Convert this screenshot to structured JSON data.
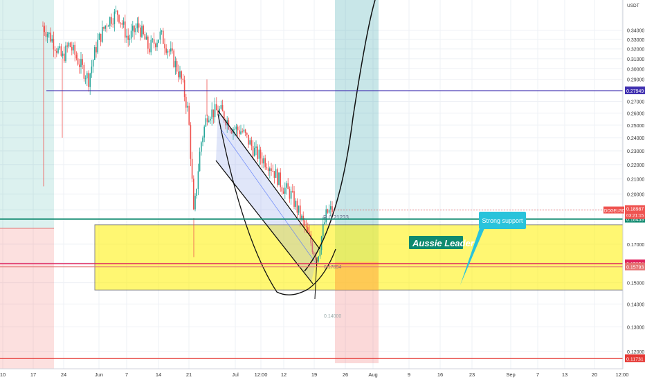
{
  "symbol": "DOGEUSDT",
  "currency": "USDT",
  "chart_data": {
    "type": "candlestick",
    "y_scale": "log",
    "ylim": [
      0.1135,
      0.375
    ],
    "x_tick_labels": [
      "10",
      "17",
      "24",
      "Jun",
      "7",
      "14",
      "21",
      "Jul",
      "12:00",
      "12",
      "19",
      "26",
      "Aug",
      "9",
      "16",
      "23",
      "Sep",
      "7",
      "13",
      "20",
      "12:00"
    ],
    "y_tick_labels": [
      "0.34000",
      "0.33000",
      "0.32000",
      "0.31000",
      "0.30000",
      "0.29000",
      "0.27000",
      "0.26000",
      "0.25000",
      "0.24000",
      "0.23000",
      "0.22000",
      "0.21000",
      "0.20000",
      "0.19000",
      "0.17000",
      "0.16000",
      "0.15000",
      "0.14000",
      "0.13000",
      "0.12000"
    ],
    "horizontal_levels": [
      {
        "value": 0.27949,
        "label": "0.27949",
        "color": "#3f2fb0"
      },
      {
        "value": 0.18439,
        "label": "0.18439",
        "color": "#0f8a6f"
      },
      {
        "value": 0.15954,
        "label": "0.15954",
        "color": "#e0245e"
      },
      {
        "value": 0.15793,
        "label": "0.15793",
        "color": "#e57373"
      },
      {
        "value": 0.11731,
        "label": "0.11731",
        "color": "#e53935"
      }
    ],
    "last_price": {
      "value": 0.18987,
      "label": "0.18987",
      "countdown": "03:21:15",
      "color": "#ef5350"
    },
    "zones": [
      {
        "name": "support-zone",
        "from": 0.1465,
        "to": 0.181,
        "color": "#fff200"
      }
    ],
    "candles_trend": [
      {
        "label": "Jun",
        "approx_close": 0.29
      },
      {
        "label": "21",
        "approx_close": 0.22
      },
      {
        "label": "Jul",
        "approx_close": 0.24
      },
      {
        "label": "19",
        "approx_close": 0.19
      }
    ],
    "drawn_labels": {
      "r_label": "R 0.21233",
      "fib_label": "0.17894",
      "bottom_label": "0.14000"
    }
  },
  "annotations": {
    "watermark": "Aussie Leader",
    "callout": "Strong support"
  }
}
